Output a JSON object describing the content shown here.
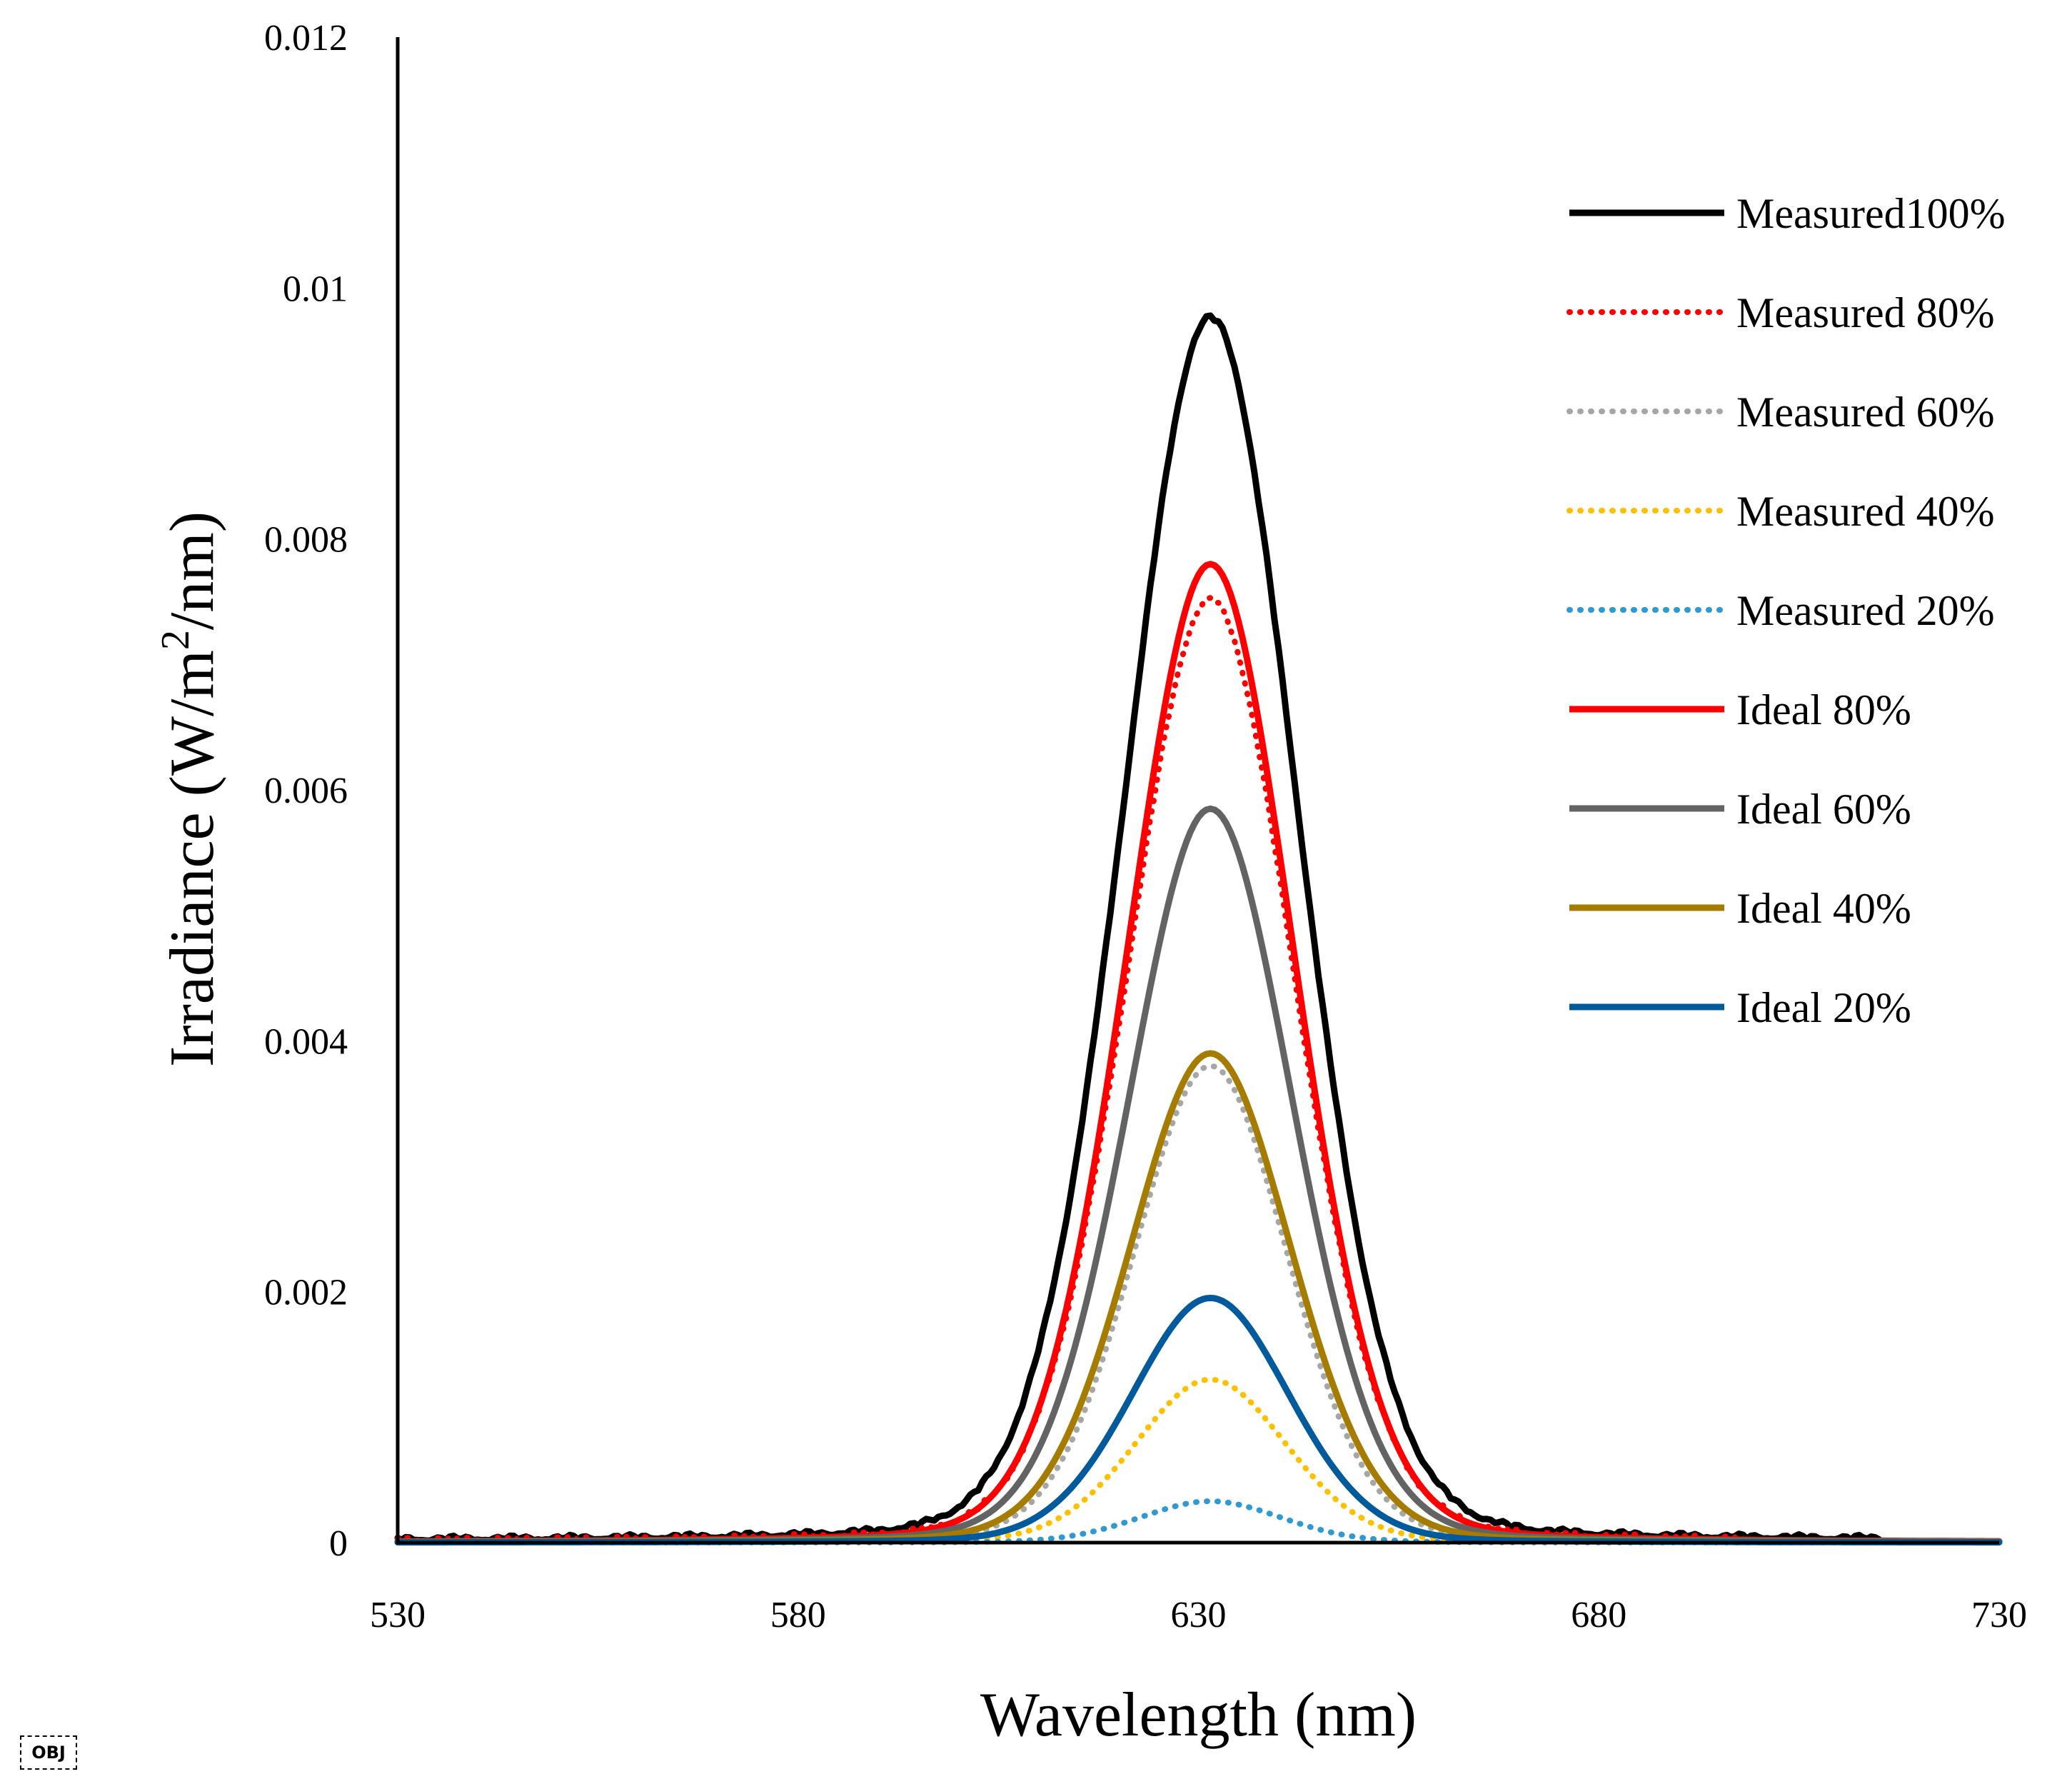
{
  "chart_data": {
    "type": "line",
    "title": "",
    "xlabel": "Wavelength (nm)",
    "ylabel_parts": {
      "before": "Irradiance (W/m",
      "sup": "2",
      "after": "/nm)"
    },
    "xlim": [
      530,
      730
    ],
    "ylim": [
      0,
      0.012
    ],
    "x_ticks": [
      "530",
      "580",
      "630",
      "680",
      "730"
    ],
    "y_ticks": [
      "0",
      "0.002",
      "0.004",
      "0.006",
      "0.008",
      "0.01",
      "0.012"
    ],
    "grid": false,
    "legend_position": "right",
    "series": [
      {
        "name": "Measured100%",
        "peak": 0.00975,
        "center": 631.5,
        "width": 11.0,
        "baseline_noise": true,
        "end": 715,
        "color": "#000000",
        "style": "solid"
      },
      {
        "name": "Measured 80%",
        "peak": 0.0075,
        "center": 631.5,
        "width": 10.6,
        "baseline_noise": true,
        "end": 697,
        "color": "#ff0000",
        "style": "dotted"
      },
      {
        "name": "Measured 60%",
        "peak": 0.0038,
        "center": 631.5,
        "width": 9.8,
        "color": "#a6a6a6",
        "style": "dotted"
      },
      {
        "name": "Measured 40%",
        "peak": 0.0013,
        "center": 631.5,
        "width": 9.6,
        "color": "#ffc000",
        "style": "dotted"
      },
      {
        "name": "Measured 20%",
        "peak": 0.00033,
        "center": 631.5,
        "width": 9.0,
        "color": "#2e9ad0",
        "style": "dotted"
      },
      {
        "name": "Ideal 80%",
        "peak": 0.0078,
        "center": 631.5,
        "width": 10.6,
        "color": "#ff0000",
        "style": "solid"
      },
      {
        "name": "Ideal 60%",
        "peak": 0.00585,
        "center": 631.5,
        "width": 10.4,
        "color": "#636363",
        "style": "solid"
      },
      {
        "name": "Ideal 40%",
        "peak": 0.0039,
        "center": 631.5,
        "width": 10.2,
        "color": "#a67c00",
        "style": "solid"
      },
      {
        "name": "Ideal 20%",
        "peak": 0.00195,
        "center": 631.5,
        "width": 10.0,
        "color": "#005a9c",
        "style": "solid"
      }
    ]
  },
  "badge": {
    "label": "OBJ"
  }
}
